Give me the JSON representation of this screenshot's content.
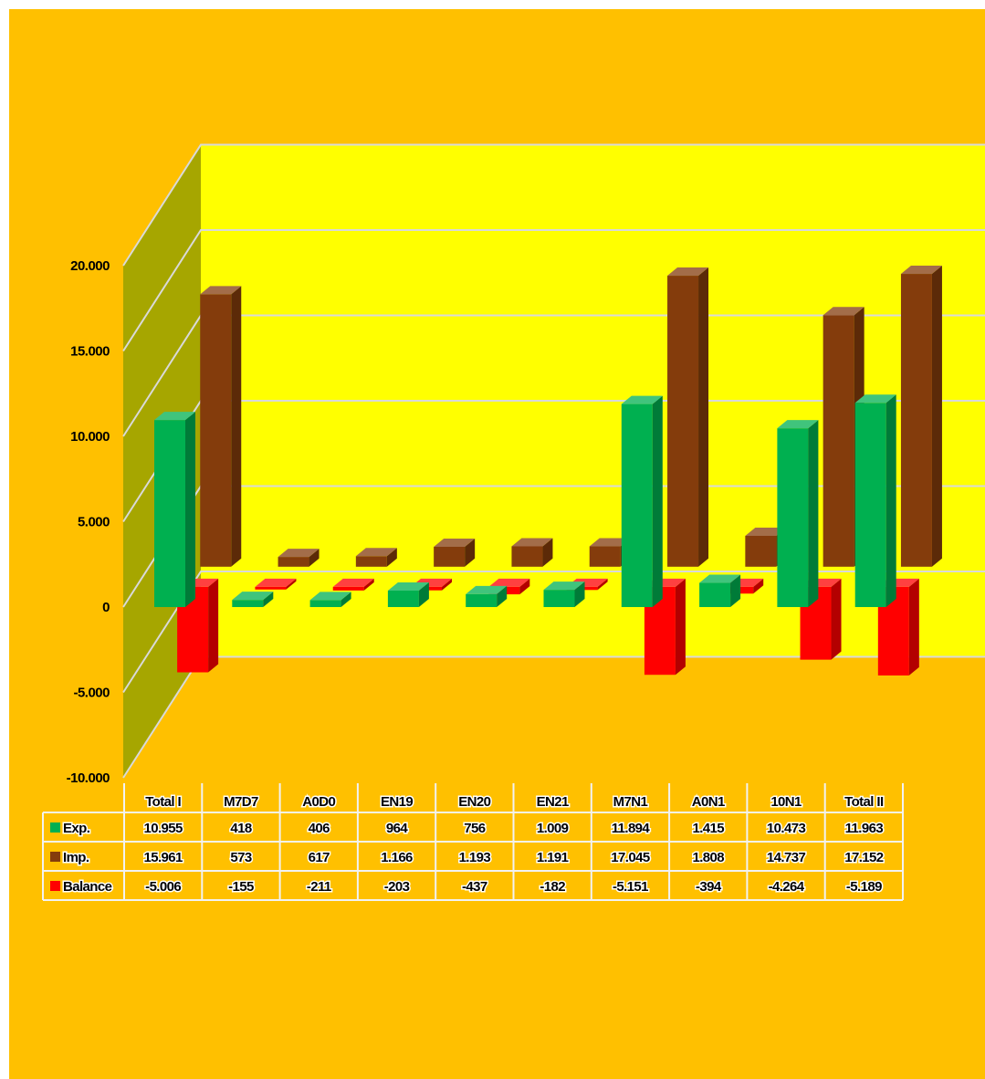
{
  "colors": {
    "background": "#FFC000",
    "plot_back_wall": "#FFFF00",
    "plot_side_wall": "#A6A600",
    "gridline": "#D9D9D9",
    "export": "#00B050",
    "import": "#843C0C",
    "balance": "#FF0000"
  },
  "chart_data": {
    "type": "bar",
    "style": "3d-clustered-column-with-data-table",
    "categories": [
      "Total I",
      "M7D7",
      "A0D0",
      "EN19",
      "EN20",
      "EN21",
      "M7N1",
      "A0N1",
      "10N1",
      "Total II"
    ],
    "series": [
      {
        "name": "Exp.",
        "color": "#00B050",
        "values": [
          10955,
          418,
          406,
          964,
          756,
          1009,
          11894,
          1415,
          10473,
          11963
        ],
        "labels": [
          "10.955",
          "418",
          "406",
          "964",
          "756",
          "1.009",
          "11.894",
          "1.415",
          "10.473",
          "11.963"
        ]
      },
      {
        "name": "Imp.",
        "color": "#843C0C",
        "values": [
          15961,
          573,
          617,
          1166,
          1193,
          1191,
          17045,
          1808,
          14737,
          17152
        ],
        "labels": [
          "15.961",
          "573",
          "617",
          "1.166",
          "1.193",
          "1.191",
          "17.045",
          "1.808",
          "14.737",
          "17.152"
        ]
      },
      {
        "name": "Balance",
        "color": "#FF0000",
        "values": [
          -5006,
          -155,
          -211,
          -203,
          -437,
          -182,
          -5151,
          -394,
          -4264,
          -5189
        ],
        "labels": [
          "-5.006",
          "-155",
          "-211",
          "-203",
          "-437",
          "-182",
          "-5.151",
          "-394",
          "-4.264",
          "-5.189"
        ]
      }
    ],
    "y_ticks": [
      -10000,
      -5000,
      0,
      5000,
      10000,
      15000,
      20000
    ],
    "y_tick_labels": [
      "-10.000",
      "-5.000",
      "0",
      "5.000",
      "10.000",
      "15.000",
      "20.000"
    ],
    "ylim": [
      -10000,
      20000
    ],
    "grid": true,
    "legend": "data-table"
  }
}
